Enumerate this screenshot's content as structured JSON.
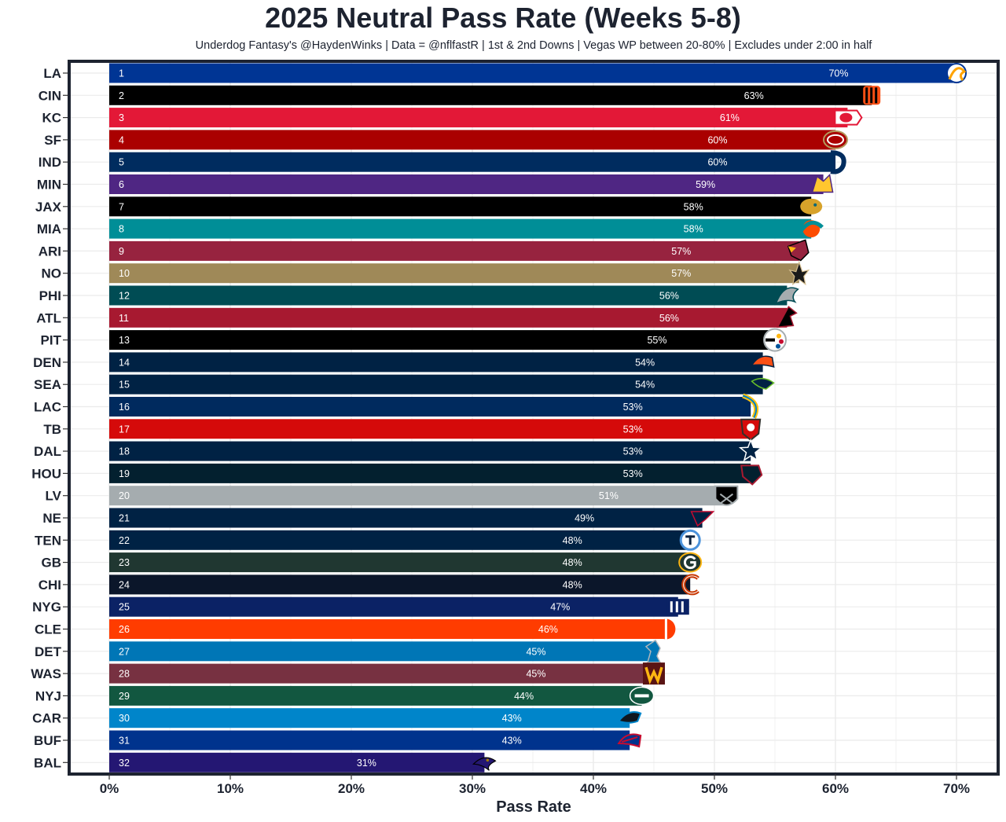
{
  "title": "2025 Neutral Pass Rate (Weeks 5-8)",
  "subtitle": "Underdog Fantasy's @HaydenWinks | Data = @nflfastR | 1st & 2nd Downs | Vegas WP between 20-80% | Excludes under 2:00 in half",
  "chart_data": {
    "type": "bar",
    "orientation": "horizontal",
    "title": "2025 Neutral Pass Rate (Weeks 5-8)",
    "xlabel": "Pass Rate",
    "ylabel": "",
    "xlim": [
      0,
      0.7
    ],
    "x_ticks": [
      "0%",
      "10%",
      "20%",
      "30%",
      "40%",
      "50%",
      "60%",
      "70%"
    ],
    "grid": true,
    "bars": [
      {
        "team": "LA",
        "rank": "1",
        "value": 0.7,
        "label": "70%",
        "color": "#003594",
        "logo": "rams-logo"
      },
      {
        "team": "CIN",
        "rank": "2",
        "value": 0.63,
        "label": "63%",
        "color": "#000000",
        "logo": "bengals-logo"
      },
      {
        "team": "KC",
        "rank": "3",
        "value": 0.61,
        "label": "61%",
        "color": "#e31837",
        "logo": "chiefs-logo"
      },
      {
        "team": "SF",
        "rank": "4",
        "value": 0.6,
        "label": "60%",
        "color": "#aa0000",
        "logo": "49ers-logo"
      },
      {
        "team": "IND",
        "rank": "5",
        "value": 0.6,
        "label": "60%",
        "color": "#002c5f",
        "logo": "colts-logo"
      },
      {
        "team": "MIN",
        "rank": "6",
        "value": 0.59,
        "label": "59%",
        "color": "#4f2683",
        "logo": "vikings-logo"
      },
      {
        "team": "JAX",
        "rank": "7",
        "value": 0.58,
        "label": "58%",
        "color": "#000000",
        "logo": "jaguars-logo"
      },
      {
        "team": "MIA",
        "rank": "8",
        "value": 0.58,
        "label": "58%",
        "color": "#008e97",
        "logo": "dolphins-logo"
      },
      {
        "team": "ARI",
        "rank": "9",
        "value": 0.57,
        "label": "57%",
        "color": "#97233f",
        "logo": "cardinals-logo"
      },
      {
        "team": "NO",
        "rank": "10",
        "value": 0.57,
        "label": "57%",
        "color": "#9f8958",
        "logo": "saints-logo"
      },
      {
        "team": "PHI",
        "rank": "12",
        "value": 0.56,
        "label": "56%",
        "color": "#004c54",
        "logo": "eagles-logo"
      },
      {
        "team": "ATL",
        "rank": "11",
        "value": 0.56,
        "label": "56%",
        "color": "#a71930",
        "logo": "falcons-logo"
      },
      {
        "team": "PIT",
        "rank": "13",
        "value": 0.55,
        "label": "55%",
        "color": "#000000",
        "logo": "steelers-logo"
      },
      {
        "team": "DEN",
        "rank": "14",
        "value": 0.54,
        "label": "54%",
        "color": "#002244",
        "logo": "broncos-logo"
      },
      {
        "team": "SEA",
        "rank": "15",
        "value": 0.54,
        "label": "54%",
        "color": "#002244",
        "logo": "seahawks-logo"
      },
      {
        "team": "LAC",
        "rank": "16",
        "value": 0.53,
        "label": "53%",
        "color": "#002a5e",
        "logo": "chargers-logo"
      },
      {
        "team": "TB",
        "rank": "17",
        "value": 0.53,
        "label": "53%",
        "color": "#d50a0a",
        "logo": "buccaneers-logo"
      },
      {
        "team": "DAL",
        "rank": "18",
        "value": 0.53,
        "label": "53%",
        "color": "#002244",
        "logo": "cowboys-logo"
      },
      {
        "team": "HOU",
        "rank": "19",
        "value": 0.53,
        "label": "53%",
        "color": "#03202f",
        "logo": "texans-logo"
      },
      {
        "team": "LV",
        "rank": "20",
        "value": 0.51,
        "label": "51%",
        "color": "#a5acaf",
        "logo": "raiders-logo"
      },
      {
        "team": "NE",
        "rank": "21",
        "value": 0.49,
        "label": "49%",
        "color": "#002244",
        "logo": "patriots-logo"
      },
      {
        "team": "TEN",
        "rank": "22",
        "value": 0.48,
        "label": "48%",
        "color": "#002244",
        "logo": "titans-logo"
      },
      {
        "team": "GB",
        "rank": "23",
        "value": 0.48,
        "label": "48%",
        "color": "#203731",
        "logo": "packers-logo"
      },
      {
        "team": "CHI",
        "rank": "24",
        "value": 0.48,
        "label": "48%",
        "color": "#0b162a",
        "logo": "bears-logo"
      },
      {
        "team": "NYG",
        "rank": "25",
        "value": 0.47,
        "label": "47%",
        "color": "#0b2265",
        "logo": "giants-logo"
      },
      {
        "team": "CLE",
        "rank": "26",
        "value": 0.46,
        "label": "46%",
        "color": "#ff3c00",
        "logo": "browns-logo"
      },
      {
        "team": "DET",
        "rank": "27",
        "value": 0.45,
        "label": "45%",
        "color": "#0076b6",
        "logo": "lions-logo"
      },
      {
        "team": "WAS",
        "rank": "28",
        "value": 0.45,
        "label": "45%",
        "color": "#773141",
        "logo": "commanders-logo"
      },
      {
        "team": "NYJ",
        "rank": "29",
        "value": 0.44,
        "label": "44%",
        "color": "#125740",
        "logo": "jets-logo"
      },
      {
        "team": "CAR",
        "rank": "30",
        "value": 0.43,
        "label": "43%",
        "color": "#0085ca",
        "logo": "panthers-logo"
      },
      {
        "team": "BUF",
        "rank": "31",
        "value": 0.43,
        "label": "43%",
        "color": "#00338d",
        "logo": "bills-logo"
      },
      {
        "team": "BAL",
        "rank": "32",
        "value": 0.31,
        "label": "31%",
        "color": "#241773",
        "logo": "ravens-logo"
      }
    ]
  }
}
